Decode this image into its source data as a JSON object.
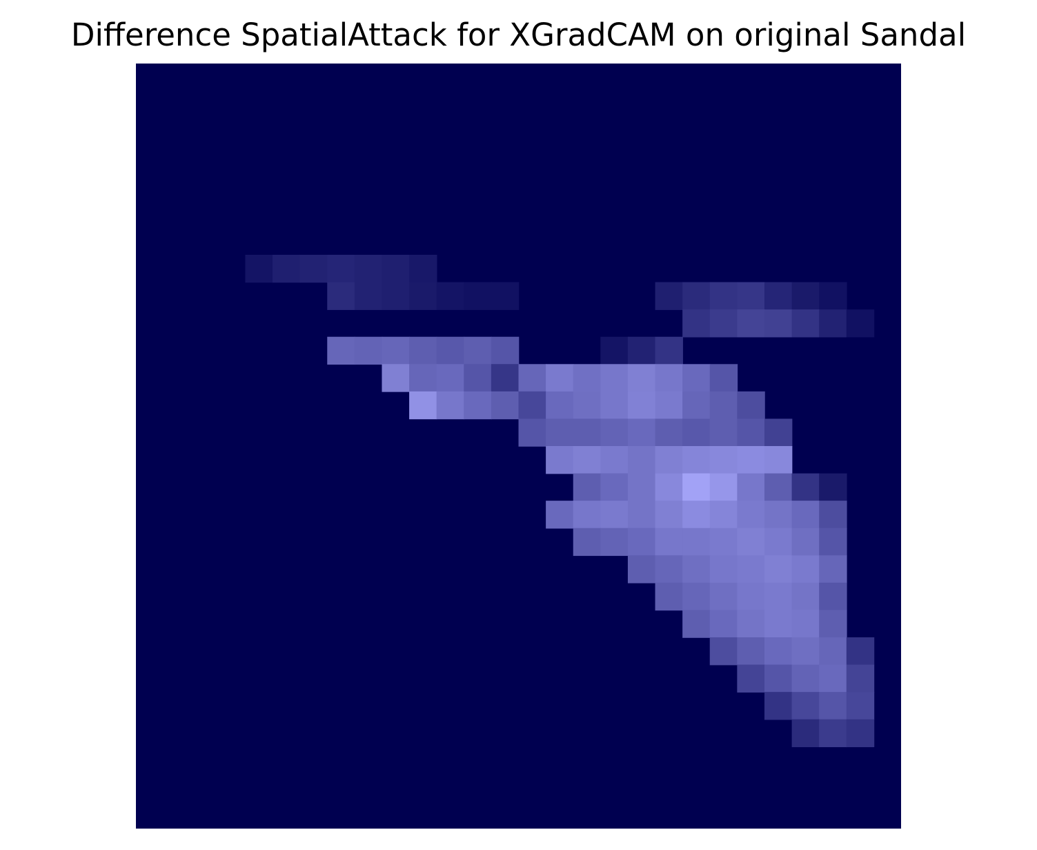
{
  "figure": {
    "title": "Difference SpatialAttack for XGradCAM on original Sandal"
  },
  "image": {
    "description_name": "sandal-difference-heatmap",
    "grid_size": [
      28,
      28
    ],
    "colors": {
      "background": "#000050",
      "bright": "#aaaaff"
    },
    "cells": [
      [
        4,
        7,
        0.12
      ],
      [
        5,
        7,
        0.18
      ],
      [
        6,
        7,
        0.2
      ],
      [
        7,
        7,
        0.22
      ],
      [
        8,
        7,
        0.2
      ],
      [
        9,
        7,
        0.18
      ],
      [
        10,
        7,
        0.14
      ],
      [
        7,
        8,
        0.25
      ],
      [
        8,
        8,
        0.2
      ],
      [
        9,
        8,
        0.18
      ],
      [
        10,
        8,
        0.15
      ],
      [
        11,
        8,
        0.12
      ],
      [
        12,
        8,
        0.1
      ],
      [
        13,
        8,
        0.1
      ],
      [
        19,
        8,
        0.18
      ],
      [
        20,
        8,
        0.25
      ],
      [
        21,
        8,
        0.3
      ],
      [
        22,
        8,
        0.32
      ],
      [
        23,
        8,
        0.22
      ],
      [
        24,
        8,
        0.15
      ],
      [
        25,
        8,
        0.1
      ],
      [
        20,
        9,
        0.3
      ],
      [
        21,
        9,
        0.35
      ],
      [
        22,
        9,
        0.4
      ],
      [
        23,
        9,
        0.38
      ],
      [
        24,
        9,
        0.3
      ],
      [
        25,
        9,
        0.2
      ],
      [
        26,
        9,
        0.1
      ],
      [
        7,
        10,
        0.6
      ],
      [
        8,
        10,
        0.58
      ],
      [
        9,
        10,
        0.6
      ],
      [
        10,
        10,
        0.55
      ],
      [
        11,
        10,
        0.52
      ],
      [
        12,
        10,
        0.55
      ],
      [
        13,
        10,
        0.5
      ],
      [
        17,
        10,
        0.12
      ],
      [
        18,
        10,
        0.2
      ],
      [
        19,
        10,
        0.3
      ],
      [
        9,
        11,
        0.75
      ],
      [
        10,
        11,
        0.6
      ],
      [
        11,
        11,
        0.62
      ],
      [
        12,
        11,
        0.5
      ],
      [
        13,
        11,
        0.32
      ],
      [
        14,
        11,
        0.6
      ],
      [
        15,
        11,
        0.72
      ],
      [
        16,
        11,
        0.66
      ],
      [
        17,
        11,
        0.7
      ],
      [
        18,
        11,
        0.75
      ],
      [
        19,
        11,
        0.7
      ],
      [
        20,
        11,
        0.62
      ],
      [
        21,
        11,
        0.5
      ],
      [
        10,
        12,
        0.85
      ],
      [
        11,
        12,
        0.7
      ],
      [
        12,
        12,
        0.62
      ],
      [
        13,
        12,
        0.55
      ],
      [
        14,
        12,
        0.42
      ],
      [
        15,
        12,
        0.62
      ],
      [
        16,
        12,
        0.65
      ],
      [
        17,
        12,
        0.7
      ],
      [
        18,
        12,
        0.76
      ],
      [
        19,
        12,
        0.72
      ],
      [
        20,
        12,
        0.6
      ],
      [
        21,
        12,
        0.55
      ],
      [
        22,
        12,
        0.45
      ],
      [
        14,
        13,
        0.5
      ],
      [
        15,
        13,
        0.55
      ],
      [
        16,
        13,
        0.55
      ],
      [
        17,
        13,
        0.58
      ],
      [
        18,
        13,
        0.62
      ],
      [
        19,
        13,
        0.55
      ],
      [
        20,
        13,
        0.52
      ],
      [
        21,
        13,
        0.55
      ],
      [
        22,
        13,
        0.5
      ],
      [
        23,
        13,
        0.38
      ],
      [
        15,
        14,
        0.72
      ],
      [
        16,
        14,
        0.75
      ],
      [
        17,
        14,
        0.72
      ],
      [
        18,
        14,
        0.68
      ],
      [
        19,
        14,
        0.75
      ],
      [
        20,
        14,
        0.78
      ],
      [
        21,
        14,
        0.8
      ],
      [
        22,
        14,
        0.82
      ],
      [
        23,
        14,
        0.8
      ],
      [
        16,
        15,
        0.55
      ],
      [
        17,
        15,
        0.62
      ],
      [
        18,
        15,
        0.68
      ],
      [
        19,
        15,
        0.8
      ],
      [
        20,
        15,
        0.95
      ],
      [
        21,
        15,
        0.88
      ],
      [
        22,
        15,
        0.7
      ],
      [
        23,
        15,
        0.55
      ],
      [
        24,
        15,
        0.3
      ],
      [
        25,
        15,
        0.15
      ],
      [
        15,
        16,
        0.62
      ],
      [
        16,
        16,
        0.7
      ],
      [
        17,
        16,
        0.72
      ],
      [
        18,
        16,
        0.68
      ],
      [
        19,
        16,
        0.75
      ],
      [
        20,
        16,
        0.82
      ],
      [
        21,
        16,
        0.78
      ],
      [
        22,
        16,
        0.72
      ],
      [
        23,
        16,
        0.68
      ],
      [
        24,
        16,
        0.62
      ],
      [
        25,
        16,
        0.45
      ],
      [
        16,
        17,
        0.55
      ],
      [
        17,
        17,
        0.58
      ],
      [
        18,
        17,
        0.62
      ],
      [
        19,
        17,
        0.7
      ],
      [
        20,
        17,
        0.7
      ],
      [
        21,
        17,
        0.72
      ],
      [
        22,
        17,
        0.75
      ],
      [
        23,
        17,
        0.72
      ],
      [
        24,
        17,
        0.65
      ],
      [
        25,
        17,
        0.5
      ],
      [
        18,
        18,
        0.55
      ],
      [
        19,
        18,
        0.6
      ],
      [
        20,
        18,
        0.65
      ],
      [
        21,
        18,
        0.7
      ],
      [
        22,
        18,
        0.72
      ],
      [
        23,
        18,
        0.75
      ],
      [
        24,
        18,
        0.72
      ],
      [
        25,
        18,
        0.6
      ],
      [
        19,
        19,
        0.55
      ],
      [
        20,
        19,
        0.6
      ],
      [
        21,
        19,
        0.65
      ],
      [
        22,
        19,
        0.7
      ],
      [
        23,
        19,
        0.72
      ],
      [
        24,
        19,
        0.68
      ],
      [
        25,
        19,
        0.5
      ],
      [
        20,
        20,
        0.55
      ],
      [
        21,
        20,
        0.62
      ],
      [
        22,
        20,
        0.68
      ],
      [
        23,
        20,
        0.72
      ],
      [
        24,
        20,
        0.7
      ],
      [
        25,
        20,
        0.55
      ],
      [
        21,
        21,
        0.45
      ],
      [
        22,
        21,
        0.55
      ],
      [
        23,
        21,
        0.62
      ],
      [
        24,
        21,
        0.65
      ],
      [
        25,
        21,
        0.6
      ],
      [
        26,
        21,
        0.3
      ],
      [
        22,
        22,
        0.4
      ],
      [
        23,
        22,
        0.5
      ],
      [
        24,
        22,
        0.58
      ],
      [
        25,
        22,
        0.62
      ],
      [
        26,
        22,
        0.4
      ],
      [
        23,
        23,
        0.3
      ],
      [
        24,
        23,
        0.42
      ],
      [
        25,
        23,
        0.5
      ],
      [
        26,
        23,
        0.42
      ],
      [
        24,
        24,
        0.25
      ],
      [
        25,
        24,
        0.35
      ],
      [
        26,
        24,
        0.3
      ]
    ]
  }
}
